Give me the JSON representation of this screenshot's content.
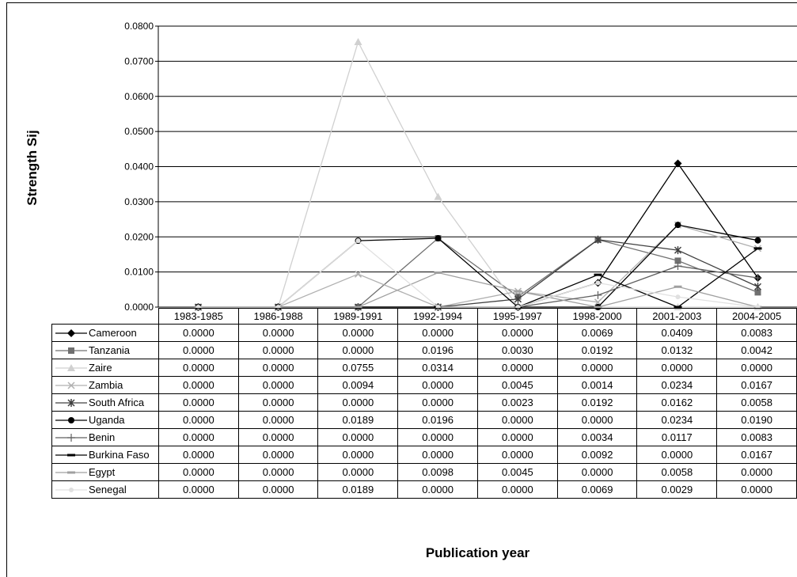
{
  "chart_data": {
    "type": "line",
    "title": "",
    "xlabel": "Publication year",
    "ylabel": "Strength Sij",
    "ylim": [
      0,
      0.08
    ],
    "yticks": [
      "0.0000",
      "0.0100",
      "0.0200",
      "0.0300",
      "0.0400",
      "0.0500",
      "0.0600",
      "0.0700",
      "0.0800"
    ],
    "grid": true,
    "legend": "table-left",
    "categories": [
      "1983-1985",
      "1986-1988",
      "1989-1991",
      "1992-1994",
      "1995-1997",
      "1998-2000",
      "2001-2003",
      "2004-2005"
    ],
    "series": [
      {
        "name": "Cameroon",
        "marker": "diamond",
        "color": "#000000",
        "values": [
          0,
          0,
          0,
          0,
          0,
          0.0069,
          0.0409,
          0.0083
        ],
        "labels": [
          "0.0000",
          "0.0000",
          "0.0000",
          "0.0000",
          "0.0000",
          "0.0069",
          "0.0409",
          "0.0083"
        ]
      },
      {
        "name": "Tanzania",
        "marker": "square",
        "color": "#707070",
        "values": [
          0,
          0,
          0,
          0.0196,
          0.003,
          0.0192,
          0.0132,
          0.0042
        ],
        "labels": [
          "0.0000",
          "0.0000",
          "0.0000",
          "0.0196",
          "0.0030",
          "0.0192",
          "0.0132",
          "0.0042"
        ]
      },
      {
        "name": "Zaire",
        "marker": "triangle",
        "color": "#d0d0d0",
        "values": [
          0,
          0,
          0.0755,
          0.0314,
          0,
          0,
          0,
          0
        ],
        "labels": [
          "0.0000",
          "0.0000",
          "0.0755",
          "0.0314",
          "0.0000",
          "0.0000",
          "0.0000",
          "0.0000"
        ]
      },
      {
        "name": "Zambia",
        "marker": "x",
        "color": "#b0b0b0",
        "values": [
          0,
          0,
          0.0094,
          0,
          0.0045,
          0.0014,
          0.0234,
          0.0167
        ],
        "labels": [
          "0.0000",
          "0.0000",
          "0.0094",
          "0.0000",
          "0.0045",
          "0.0014",
          "0.0234",
          "0.0167"
        ]
      },
      {
        "name": "South Africa",
        "marker": "asterisk",
        "color": "#404040",
        "values": [
          0,
          0,
          0,
          0,
          0.0023,
          0.0192,
          0.0162,
          0.0058
        ],
        "labels": [
          "0.0000",
          "0.0000",
          "0.0000",
          "0.0000",
          "0.0023",
          "0.0192",
          "0.0162",
          "0.0058"
        ]
      },
      {
        "name": "Uganda",
        "marker": "circle",
        "color": "#000000",
        "values": [
          0,
          0,
          0.0189,
          0.0196,
          0,
          0,
          0.0234,
          0.019
        ],
        "labels": [
          "0.0000",
          "0.0000",
          "0.0189",
          "0.0196",
          "0.0000",
          "0.0000",
          "0.0234",
          "0.0190"
        ]
      },
      {
        "name": "Benin",
        "marker": "plus",
        "color": "#606060",
        "values": [
          0,
          0,
          0,
          0,
          0,
          0.0034,
          0.0117,
          0.0083
        ],
        "labels": [
          "0.0000",
          "0.0000",
          "0.0000",
          "0.0000",
          "0.0000",
          "0.0034",
          "0.0117",
          "0.0083"
        ]
      },
      {
        "name": "Burkina Faso",
        "marker": "dash",
        "color": "#000000",
        "values": [
          0,
          0,
          0,
          0,
          0,
          0.0092,
          0,
          0.0167
        ],
        "labels": [
          "0.0000",
          "0.0000",
          "0.0000",
          "0.0000",
          "0.0000",
          "0.0092",
          "0.0000",
          "0.0167"
        ]
      },
      {
        "name": "Egypt",
        "marker": "dash",
        "color": "#a0a0a0",
        "values": [
          0,
          0,
          0,
          0.0098,
          0.0045,
          0,
          0.0058,
          0
        ],
        "labels": [
          "0.0000",
          "0.0000",
          "0.0000",
          "0.0098",
          "0.0045",
          "0.0000",
          "0.0058",
          "0.0000"
        ]
      },
      {
        "name": "Senegal",
        "marker": "dot",
        "color": "#e0e0e0",
        "values": [
          0,
          0,
          0.0189,
          0,
          0,
          0.0069,
          0.0029,
          0
        ],
        "labels": [
          "0.0000",
          "0.0000",
          "0.0189",
          "0.0000",
          "0.0000",
          "0.0069",
          "0.0029",
          "0.0000"
        ]
      }
    ]
  }
}
